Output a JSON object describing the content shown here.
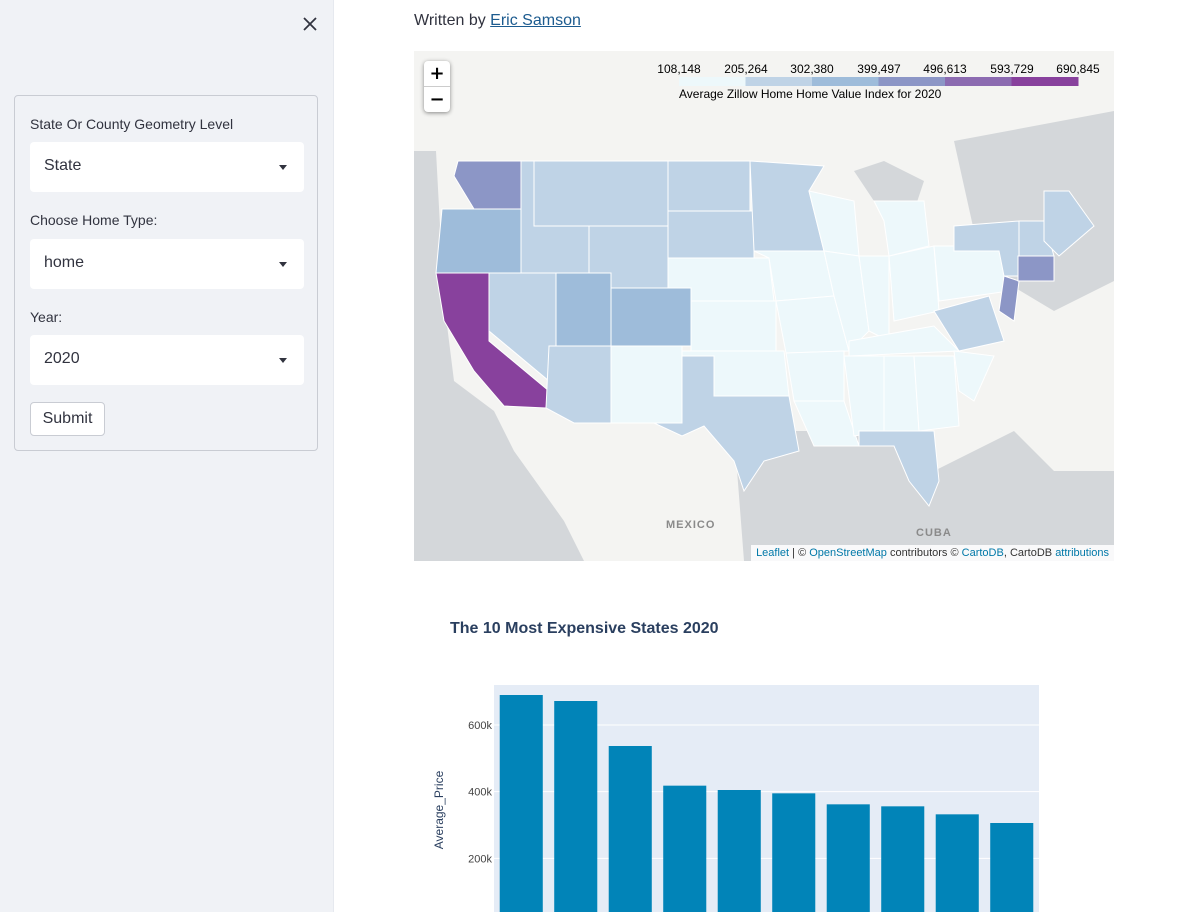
{
  "sidebar": {
    "fields": [
      {
        "label": "State Or County Geometry Level",
        "value": "State"
      },
      {
        "label": "Choose Home Type:",
        "value": "home"
      },
      {
        "label": "Year:",
        "value": "2020"
      }
    ],
    "submit_label": "Submit"
  },
  "header": {
    "written_prefix": "Written by ",
    "author": "Eric Samson"
  },
  "map": {
    "zoom_in": "+",
    "zoom_out": "−",
    "legend": {
      "ticks": [
        "108,148",
        "205,264",
        "302,380",
        "399,497",
        "496,613",
        "593,729",
        "690,845"
      ],
      "caption": "Average Zillow Home Home Value Index for 2020",
      "colors": [
        "#edf8fb",
        "#bfd3e6",
        "#9ebcda",
        "#8c96c6",
        "#8c6bb1",
        "#88419d"
      ]
    },
    "labels": {
      "mexico": "MEXICO",
      "cuba": "CUBA"
    },
    "attribution": {
      "leaflet": "Leaflet",
      "sep1": " | © ",
      "osm": "OpenStreetMap",
      "mid": " contributors © ",
      "cartodb": "CartoDB",
      "mid2": ", CartoDB ",
      "attributions": "attributions"
    }
  },
  "chart_data": {
    "type": "bar",
    "title": "The 10 Most Expensive States 2020",
    "ylabel": "Average_Price",
    "xlabel": "",
    "yticks": [
      {
        "value": 200000,
        "label": "200k"
      },
      {
        "value": 400000,
        "label": "400k"
      },
      {
        "value": 600000,
        "label": "600k"
      }
    ],
    "values": [
      690000,
      672000,
      537000,
      418000,
      405000,
      395000,
      362000,
      356000,
      332000,
      306000
    ],
    "color": "#0184b8",
    "plot_bg": "#e5ecf6",
    "ylim": [
      0,
      720000
    ]
  }
}
